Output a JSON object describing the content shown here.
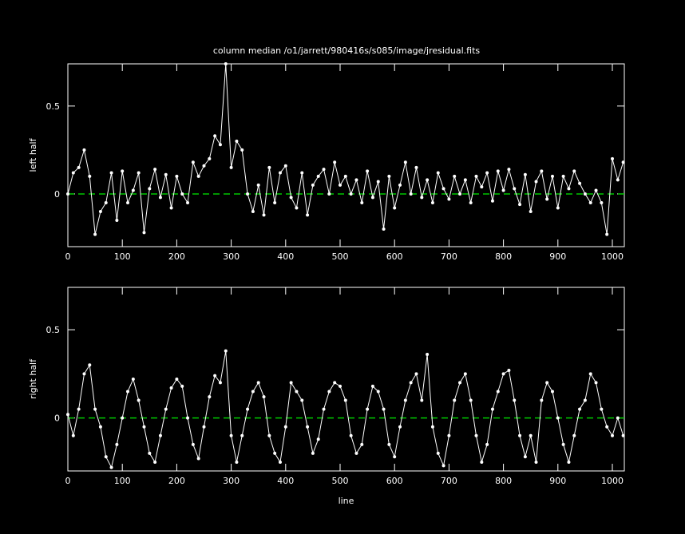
{
  "title": "column median /o1/jarrett/980416s/s085/image/jresidual.fits",
  "chart_data": [
    {
      "type": "line",
      "ylabel": "left half",
      "color": "#ffffff",
      "hline": 0,
      "hline_color": "#00c800",
      "xlim": [
        0,
        1022
      ],
      "ylim": [
        -0.3,
        0.74
      ],
      "xticks": [
        0,
        100,
        200,
        300,
        400,
        500,
        600,
        700,
        800,
        900,
        1000
      ],
      "yticks": [
        0,
        0.5
      ],
      "x": [
        0,
        10,
        20,
        30,
        40,
        50,
        60,
        70,
        80,
        90,
        100,
        110,
        120,
        130,
        140,
        150,
        160,
        170,
        180,
        190,
        200,
        210,
        220,
        230,
        240,
        250,
        260,
        270,
        280,
        290,
        300,
        310,
        320,
        330,
        340,
        350,
        360,
        370,
        380,
        390,
        400,
        410,
        420,
        430,
        440,
        450,
        460,
        470,
        480,
        490,
        500,
        510,
        520,
        530,
        540,
        550,
        560,
        570,
        580,
        590,
        600,
        610,
        620,
        630,
        640,
        650,
        660,
        670,
        680,
        690,
        700,
        710,
        720,
        730,
        740,
        750,
        760,
        770,
        780,
        790,
        800,
        810,
        820,
        830,
        840,
        850,
        860,
        870,
        880,
        890,
        900,
        910,
        920,
        930,
        940,
        950,
        960,
        970,
        980,
        990,
        1000,
        1010,
        1020
      ],
      "values": [
        0.0,
        0.12,
        0.15,
        0.25,
        0.1,
        -0.23,
        -0.1,
        -0.05,
        0.12,
        -0.15,
        0.13,
        -0.05,
        0.02,
        0.12,
        -0.22,
        0.03,
        0.14,
        -0.02,
        0.11,
        -0.08,
        0.1,
        0.0,
        -0.05,
        0.18,
        0.1,
        0.16,
        0.2,
        0.33,
        0.28,
        0.74,
        0.15,
        0.3,
        0.25,
        0.0,
        -0.1,
        0.05,
        -0.12,
        0.15,
        -0.05,
        0.12,
        0.16,
        -0.02,
        -0.08,
        0.12,
        -0.12,
        0.05,
        0.1,
        0.14,
        0.0,
        0.18,
        0.05,
        0.1,
        0.0,
        0.08,
        -0.05,
        0.13,
        -0.02,
        0.07,
        -0.2,
        0.1,
        -0.08,
        0.05,
        0.18,
        0.0,
        0.15,
        -0.02,
        0.08,
        -0.05,
        0.12,
        0.03,
        -0.03,
        0.1,
        0.0,
        0.08,
        -0.05,
        0.1,
        0.04,
        0.12,
        -0.04,
        0.13,
        0.02,
        0.14,
        0.03,
        -0.06,
        0.11,
        -0.1,
        0.07,
        0.13,
        -0.03,
        0.1,
        -0.08,
        0.1,
        0.03,
        0.13,
        0.06,
        0.0,
        -0.05,
        0.02,
        -0.05,
        -0.23,
        0.2,
        0.08,
        0.18
      ]
    },
    {
      "type": "line",
      "ylabel": "right half",
      "xlabel": "line",
      "color": "#ffffff",
      "hline": 0,
      "hline_color": "#00c800",
      "xlim": [
        0,
        1022
      ],
      "ylim": [
        -0.3,
        0.74
      ],
      "xticks": [
        0,
        100,
        200,
        300,
        400,
        500,
        600,
        700,
        800,
        900,
        1000
      ],
      "yticks": [
        0,
        0.5
      ],
      "x": [
        0,
        10,
        20,
        30,
        40,
        50,
        60,
        70,
        80,
        90,
        100,
        110,
        120,
        130,
        140,
        150,
        160,
        170,
        180,
        190,
        200,
        210,
        220,
        230,
        240,
        250,
        260,
        270,
        280,
        290,
        300,
        310,
        320,
        330,
        340,
        350,
        360,
        370,
        380,
        390,
        400,
        410,
        420,
        430,
        440,
        450,
        460,
        470,
        480,
        490,
        500,
        510,
        520,
        530,
        540,
        550,
        560,
        570,
        580,
        590,
        600,
        610,
        620,
        630,
        640,
        650,
        660,
        670,
        680,
        690,
        700,
        710,
        720,
        730,
        740,
        750,
        760,
        770,
        780,
        790,
        800,
        810,
        820,
        830,
        840,
        850,
        860,
        870,
        880,
        890,
        900,
        910,
        920,
        930,
        940,
        950,
        960,
        970,
        980,
        990,
        1000,
        1010,
        1020
      ],
      "values": [
        0.02,
        -0.1,
        0.05,
        0.25,
        0.3,
        0.05,
        -0.05,
        -0.22,
        -0.28,
        -0.15,
        0.0,
        0.15,
        0.22,
        0.1,
        -0.05,
        -0.2,
        -0.25,
        -0.1,
        0.05,
        0.17,
        0.22,
        0.18,
        0.0,
        -0.15,
        -0.23,
        -0.05,
        0.12,
        0.24,
        0.2,
        0.38,
        -0.1,
        -0.25,
        -0.1,
        0.05,
        0.15,
        0.2,
        0.12,
        -0.1,
        -0.2,
        -0.25,
        -0.05,
        0.2,
        0.15,
        0.1,
        -0.05,
        -0.2,
        -0.12,
        0.05,
        0.15,
        0.2,
        0.18,
        0.1,
        -0.1,
        -0.2,
        -0.15,
        0.05,
        0.18,
        0.15,
        0.05,
        -0.15,
        -0.22,
        -0.05,
        0.1,
        0.2,
        0.25,
        0.1,
        0.36,
        -0.05,
        -0.2,
        -0.27,
        -0.1,
        0.1,
        0.2,
        0.25,
        0.1,
        -0.1,
        -0.25,
        -0.15,
        0.05,
        0.15,
        0.25,
        0.27,
        0.1,
        -0.1,
        -0.22,
        -0.1,
        -0.25,
        0.1,
        0.2,
        0.15,
        0.0,
        -0.15,
        -0.25,
        -0.1,
        0.05,
        0.1,
        0.25,
        0.2,
        0.05,
        -0.05,
        -0.1,
        0.0,
        -0.1
      ]
    }
  ]
}
